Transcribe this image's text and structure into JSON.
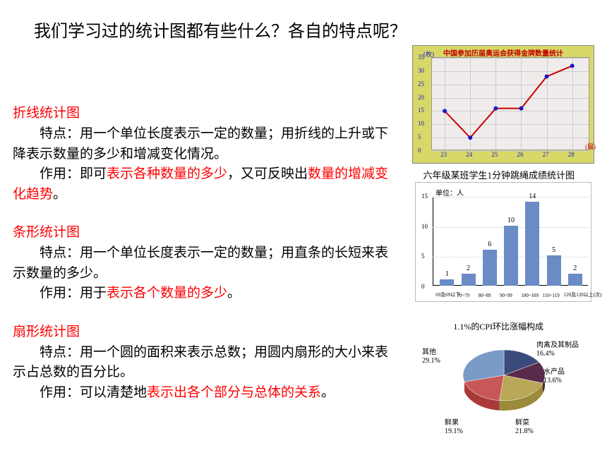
{
  "title": "我们学习过的统计图都有些什么？各自的特点呢？",
  "sections": {
    "line": {
      "title": "折线统计图",
      "feat_pre": "特点：用一个单位长度表示一定的数量；用折线的上升或下降表示数量的多少和增减变化情况。",
      "use_pre": "作用：即可",
      "use_hl1": "表示各种数量的多少",
      "use_mid": "，又可反映出",
      "use_hl2": "数量的增减变化趋势",
      "use_end": "。"
    },
    "bar": {
      "title": "条形统计图",
      "feat": "特点：用一个单位长度表示一定的数量；用直条的长短来表示数量的多少。",
      "use_pre": "作用：用于",
      "use_hl": "表示各个数量的多少",
      "use_end": "。"
    },
    "pie": {
      "title": "扇形统计图",
      "feat": "特点：用一个圆的面积来表示总数；用圆内扇形的大小来表示占总数的百分比。",
      "use_pre": "作用：可以清楚地",
      "use_hl": "表示出各个部分与总体的关系",
      "use_end": "。"
    }
  },
  "line_chart": {
    "title": "中国参加历届奥运会获得金牌数量统计",
    "ylabel": "(枚)",
    "xlabel": "(届)",
    "ymax": 35,
    "ytick_step": 5,
    "categories": [
      "23",
      "24",
      "25",
      "26",
      "27",
      "28"
    ],
    "values": [
      15,
      5,
      16,
      16,
      28,
      32
    ],
    "line_color": "#cc0000",
    "point_color": "#1818cc",
    "bg": "#d8d868",
    "plot_bg": "#f0ecec"
  },
  "bar_chart": {
    "title": "六年级某班学生1分钟跳绳成绩统计图",
    "unit": "单位：人",
    "ymax": 15,
    "ytick_step": 5,
    "categories": [
      "69及69以下",
      "70~79",
      "80~89",
      "90~99",
      "100~109",
      "110~119",
      "120及120以上"
    ],
    "values": [
      1,
      2,
      6,
      10,
      14,
      5,
      2
    ],
    "bar_color": "#6a8bc4",
    "xaxis_suffix": "(次)"
  },
  "pie_chart": {
    "title": "1.1%的CPI环比涨幅构成",
    "slices": [
      {
        "label": "肉禽及其制品",
        "pct": "16.4%",
        "color": "#3a4a7a"
      },
      {
        "label": "水产品",
        "pct": "13.6%",
        "color": "#5a2a4a"
      },
      {
        "label": "鲜菜",
        "pct": "21.8%",
        "color": "#b8a858"
      },
      {
        "label": "鲜果",
        "pct": "19.1%",
        "color": "#c85858"
      },
      {
        "label": "其他",
        "pct": "29.1%",
        "color": "#7a9ac8"
      }
    ]
  }
}
